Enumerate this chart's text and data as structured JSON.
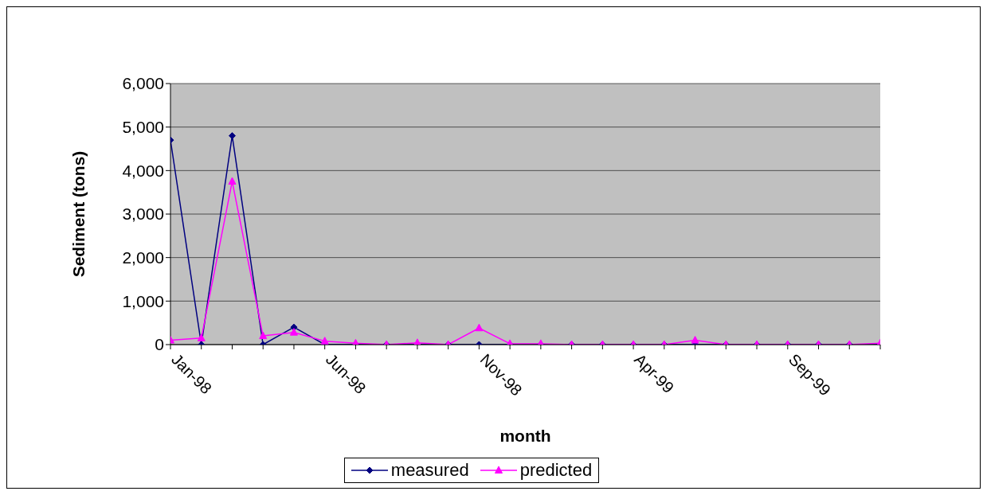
{
  "chart_data": {
    "type": "line",
    "xlabel": "month",
    "ylabel": "Sediment (tons)",
    "categories": [
      "Jan-98",
      null,
      null,
      null,
      null,
      "Jun-98",
      null,
      null,
      null,
      null,
      "Nov-98",
      null,
      null,
      null,
      null,
      "Apr-99",
      null,
      null,
      null,
      null,
      "Sep-99",
      null,
      null,
      null
    ],
    "series": [
      {
        "name": "measured",
        "color": "#000080",
        "marker": "diamond",
        "values": [
          4700,
          0,
          4800,
          0,
          400,
          0,
          0,
          0,
          0,
          0,
          0,
          0,
          0,
          0,
          0,
          0,
          0,
          0,
          0,
          0,
          0,
          0,
          0,
          0
        ]
      },
      {
        "name": "predicted",
        "color": "#ff00ff",
        "marker": "triangle",
        "values": [
          100,
          150,
          3750,
          200,
          280,
          80,
          30,
          0,
          40,
          0,
          380,
          20,
          20,
          0,
          0,
          0,
          0,
          100,
          0,
          0,
          0,
          0,
          0,
          30
        ]
      }
    ],
    "ylim": [
      0,
      6000
    ],
    "yticks": [
      0,
      {
        "value": 1000,
        "label": "1,000"
      },
      {
        "value": 2000,
        "label": "2,000"
      },
      {
        "value": 3000,
        "label": "3,000"
      },
      {
        "value": 4000,
        "label": "4,000"
      },
      {
        "value": 5000,
        "label": "5,000"
      },
      {
        "value": 6000,
        "label": "6,000"
      }
    ],
    "grid": "y",
    "legend": "bottom"
  }
}
